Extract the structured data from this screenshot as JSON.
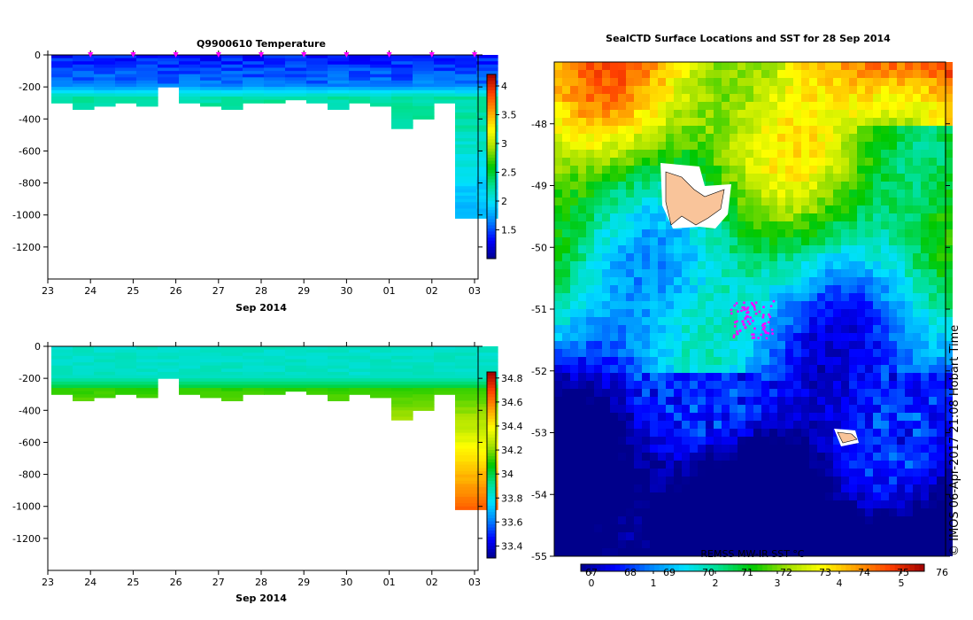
{
  "chart_data": [
    {
      "type": "heatmap",
      "title": "Q9900610  Temperature",
      "xlabel": "Sep 2014",
      "x_tick_labels": [
        "23",
        "24",
        "25",
        "26",
        "27",
        "28",
        "29",
        "30",
        "01",
        "02",
        "03"
      ],
      "y_tick_labels": [
        "0",
        "-200",
        "-400",
        "-600",
        "-800",
        "-1000",
        "-1200"
      ],
      "ylim": [
        -1400,
        0
      ],
      "colorbar_ticks": [
        "4",
        "3.5",
        "3",
        "2.5",
        "2",
        "1.5"
      ],
      "colorbar_range": [
        1.0,
        4.2
      ],
      "colormap": [
        "#00008b",
        "#0000ff",
        "#0080ff",
        "#00e0ff",
        "#00e090",
        "#00c800",
        "#a0e000",
        "#ffff00",
        "#ffa000",
        "#ff4000",
        "#a00000"
      ],
      "profile_days": [
        0.5,
        1,
        1.5,
        2,
        2.5,
        3,
        3.5,
        4,
        4.5,
        5,
        5.5,
        6,
        6.5,
        7,
        7.5,
        8,
        8.5,
        9,
        9.5,
        10,
        10.5
      ],
      "profile_depths_m": [
        300,
        330,
        310,
        300,
        320,
        200,
        300,
        310,
        330,
        300,
        300,
        280,
        300,
        340,
        300,
        320,
        460,
        400,
        300,
        1010,
        1010
      ],
      "surface_value": 1.3,
      "deep_value": 2.3
    },
    {
      "type": "heatmap",
      "title": "",
      "xlabel": "Sep 2014",
      "x_tick_labels": [
        "23",
        "24",
        "25",
        "26",
        "27",
        "28",
        "29",
        "30",
        "01",
        "02",
        "03"
      ],
      "y_tick_labels": [
        "0",
        "-200",
        "-400",
        "-600",
        "-800",
        "-1000",
        "-1200"
      ],
      "ylim": [
        -1400,
        0
      ],
      "colorbar_ticks": [
        "34.8",
        "34.6",
        "34.4",
        "34.2",
        "34",
        "33.8",
        "33.6",
        "33.4"
      ],
      "colorbar_range": [
        33.3,
        34.85
      ],
      "colormap": [
        "#00008b",
        "#0000ff",
        "#0080ff",
        "#00e0ff",
        "#00e090",
        "#00c800",
        "#a0e000",
        "#ffff00",
        "#ffa000",
        "#ff4000",
        "#a00000"
      ],
      "surface_value": 33.85,
      "deep_value": 34.6
    },
    {
      "type": "heatmap",
      "title": "SealCTD Surface Locations and SST for 28 Sep 2014",
      "y_tick_labels": [
        "-48",
        "-49",
        "-50",
        "-51",
        "-52",
        "-53",
        "-54",
        "-55"
      ],
      "ylim": [
        -55,
        -47
      ],
      "colorbar_top_labels": [
        "67",
        "68",
        "69",
        "70",
        "71",
        "72",
        "73",
        "74",
        "75",
        "76"
      ],
      "colorbar_bottom_labels": [
        "0",
        "1",
        "2",
        "3",
        "4",
        "5"
      ],
      "colorbar_caption": "REMSS MW-IR SST °C",
      "colormap": [
        "#00008b",
        "#0000ff",
        "#0080ff",
        "#00e0ff",
        "#00e090",
        "#00c800",
        "#a0e000",
        "#ffff00",
        "#ffa000",
        "#ff4000",
        "#a00000"
      ],
      "sst_range": [
        0,
        5.5
      ],
      "seal_locations": [
        [
          -51.35,
          -51.05
        ],
        [
          -51.3,
          -50.95
        ],
        [
          -51.2,
          -51.0
        ],
        [
          -51.15,
          -50.95
        ],
        [
          -51.05,
          -50.9
        ],
        [
          -51.4,
          -51.1
        ],
        [
          -51.25,
          -50.98
        ],
        [
          -51.0,
          -50.92
        ]
      ],
      "credit": "© IMOS 06-Apr-2017 21:08 Hobart Time"
    }
  ]
}
